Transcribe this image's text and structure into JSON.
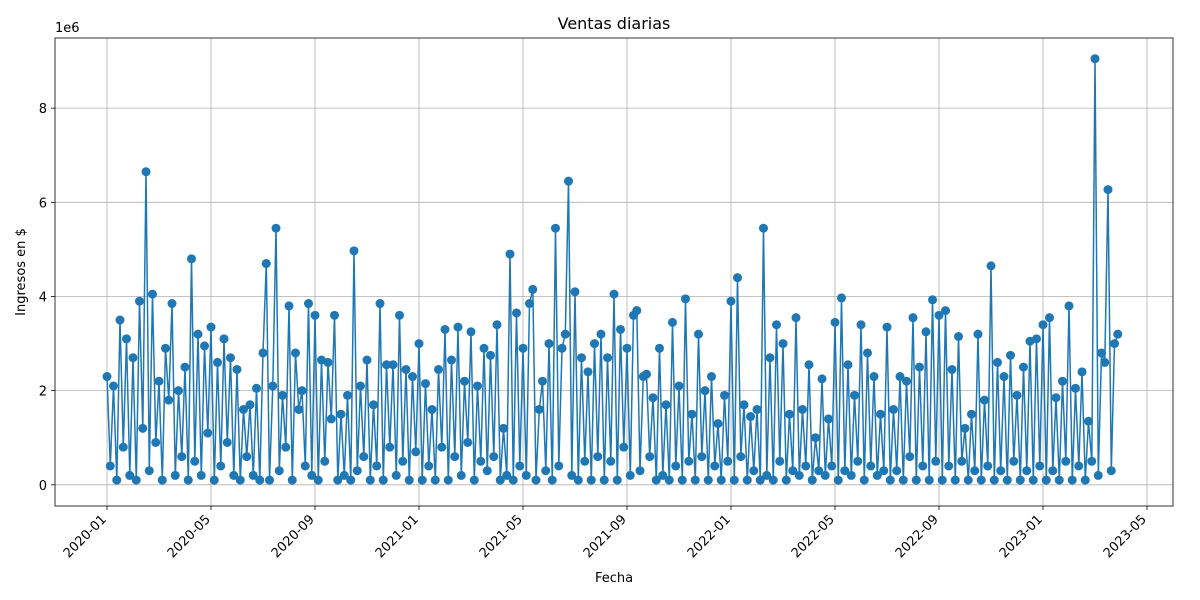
{
  "chart_data": {
    "type": "line",
    "title": "Ventas diarias",
    "x_label": "Fecha",
    "y_label": "Ingresos en $",
    "y_offset_label": "1e6",
    "color": "#1f77b4",
    "grid": true,
    "x": [
      "2020-01",
      "2020-02",
      "2020-03",
      "2020-04",
      "2020-05",
      "2020-06",
      "2020-07",
      "2020-08",
      "2020-09",
      "2020-10",
      "2020-11",
      "2020-12",
      "2021-01",
      "2021-02",
      "2021-03",
      "2021-04",
      "2021-05",
      "2021-06",
      "2021-07",
      "2021-08",
      "2021-09",
      "2021-10",
      "2021-11",
      "2021-12",
      "2022-01",
      "2022-02",
      "2022-03",
      "2022-04",
      "2022-05",
      "2022-06",
      "2022-07",
      "2022-08",
      "2022-09",
      "2022-10",
      "2022-11",
      "2022-12",
      "2023-01",
      "2023-02",
      "2023-03"
    ],
    "values": [
      [
        2.3,
        0.4,
        2.1,
        0.1,
        3.5,
        0.8,
        3.1,
        0.2
      ],
      [
        2.7,
        0.1,
        3.9,
        1.2,
        6.65,
        0.3,
        4.05,
        0.9
      ],
      [
        2.2,
        0.1,
        2.9,
        1.8,
        3.85,
        0.2,
        2.0,
        0.6
      ],
      [
        2.5,
        0.1,
        4.8,
        0.5,
        3.2,
        0.2,
        2.95,
        1.1
      ],
      [
        3.35,
        0.1,
        2.6,
        0.4,
        3.1,
        0.9,
        2.7,
        0.2
      ],
      [
        2.45,
        0.1,
        1.6,
        0.6,
        1.7,
        0.2,
        2.05,
        0.1
      ],
      [
        2.8,
        4.7,
        0.1,
        2.1,
        5.45,
        0.3,
        1.9,
        0.8
      ],
      [
        3.8,
        0.1,
        2.8,
        1.6,
        2.0,
        0.4,
        3.85,
        0.2
      ],
      [
        3.6,
        0.1,
        2.65,
        0.5,
        2.6,
        1.4,
        3.6,
        0.1
      ],
      [
        1.5,
        0.2,
        1.9,
        0.1,
        4.97,
        0.3,
        2.1,
        0.6
      ],
      [
        2.65,
        0.1,
        1.7,
        0.4,
        3.85,
        0.1,
        2.55,
        0.8
      ],
      [
        2.55,
        0.2,
        3.6,
        0.5,
        2.45,
        0.1,
        2.3,
        0.7
      ],
      [
        3.0,
        0.1,
        2.15,
        0.4,
        1.6,
        0.1,
        2.45,
        0.8
      ],
      [
        3.3,
        0.1,
        2.65,
        0.6,
        3.35,
        0.2,
        2.2,
        0.9
      ],
      [
        3.25,
        0.1,
        2.1,
        0.5,
        2.9,
        0.3,
        2.75,
        0.6
      ],
      [
        3.4,
        0.1,
        1.2,
        0.2,
        4.9,
        0.1,
        3.65,
        0.4
      ],
      [
        2.9,
        0.2,
        3.85,
        4.15,
        0.1,
        1.6,
        2.2,
        0.3
      ],
      [
        3.0,
        0.1,
        5.45,
        0.4,
        2.9,
        3.2,
        6.45,
        0.2
      ],
      [
        4.1,
        0.1,
        2.7,
        0.5,
        2.4,
        0.1,
        3.0,
        0.6
      ],
      [
        3.2,
        0.1,
        2.7,
        0.5,
        4.05,
        0.1,
        3.3,
        0.8
      ],
      [
        2.9,
        0.2,
        3.6,
        3.7,
        0.3,
        2.3,
        2.35,
        0.6
      ],
      [
        1.85,
        0.1,
        2.9,
        0.2,
        1.7,
        0.1,
        3.45,
        0.4
      ],
      [
        2.1,
        0.1,
        3.95,
        0.5,
        1.5,
        0.1,
        3.2,
        0.6
      ],
      [
        2.0,
        0.1,
        2.3,
        0.4,
        1.3,
        0.1,
        1.9,
        0.5
      ],
      [
        3.9,
        0.1,
        4.4,
        0.6,
        1.7,
        0.1,
        1.45,
        0.3
      ],
      [
        1.6,
        0.1,
        5.45,
        0.2,
        2.7,
        0.1,
        3.4,
        0.5
      ],
      [
        3.0,
        0.1,
        1.5,
        0.3,
        3.55,
        0.2,
        1.6,
        0.4
      ],
      [
        2.55,
        0.1,
        1.0,
        0.3,
        2.25,
        0.2,
        1.4,
        0.4
      ],
      [
        3.45,
        0.1,
        3.97,
        0.3,
        2.55,
        0.2,
        1.9,
        0.5
      ],
      [
        3.4,
        0.1,
        2.8,
        0.4,
        2.3,
        0.2,
        1.5,
        0.3
      ],
      [
        3.35,
        0.1,
        1.6,
        0.3,
        2.3,
        0.1,
        2.2,
        0.6
      ],
      [
        3.55,
        0.1,
        2.5,
        0.4,
        3.25,
        0.1,
        3.93,
        0.5
      ],
      [
        3.6,
        0.1,
        3.7,
        0.4,
        2.45,
        0.1,
        3.15,
        0.5
      ],
      [
        1.2,
        0.1,
        1.5,
        0.3,
        3.2,
        0.1,
        1.8,
        0.4
      ],
      [
        4.65,
        0.1,
        2.6,
        0.3,
        2.3,
        0.1,
        2.75,
        0.5
      ],
      [
        1.9,
        0.1,
        2.5,
        0.3,
        3.05,
        0.1,
        3.1,
        0.4
      ],
      [
        3.4,
        0.1,
        3.55,
        0.3,
        1.85,
        0.1,
        2.2,
        0.5
      ],
      [
        3.8,
        0.1,
        2.05,
        0.4,
        2.4,
        0.1,
        1.35,
        0.5
      ],
      [
        9.05,
        0.2,
        2.8,
        2.6,
        6.27,
        0.3,
        3.0,
        3.2
      ]
    ],
    "xlim": [
      "2019-11",
      "2023-06"
    ],
    "xticks": [
      "2020-01",
      "2020-05",
      "2020-09",
      "2021-01",
      "2021-05",
      "2021-09",
      "2022-01",
      "2022-05",
      "2022-09",
      "2023-01",
      "2023-05"
    ],
    "ylim": [
      -0.45,
      9.49
    ],
    "yticks": [
      0,
      2,
      4,
      6,
      8
    ]
  }
}
